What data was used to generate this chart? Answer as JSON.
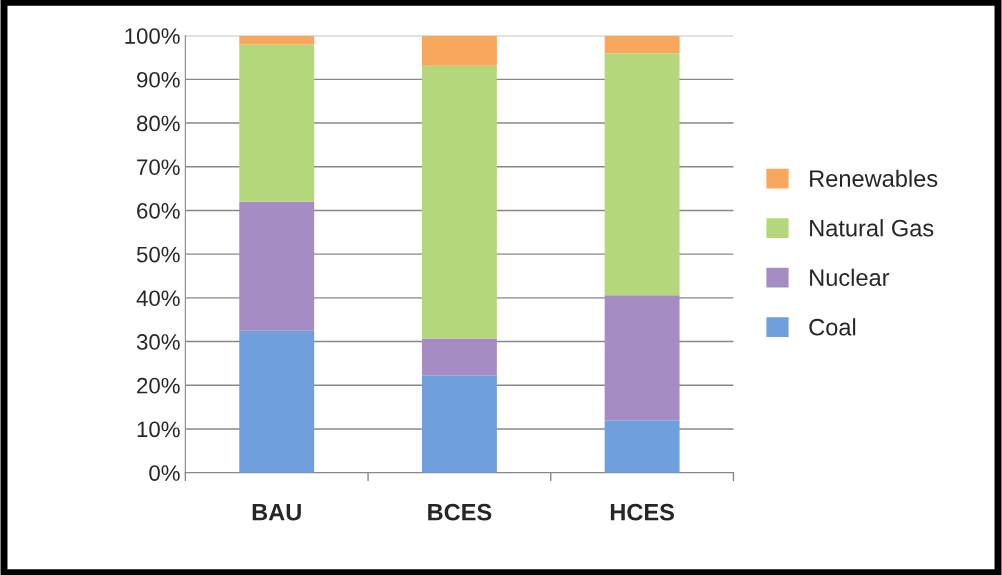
{
  "chart_data": {
    "type": "bar",
    "stacked": true,
    "categories": [
      "BAU",
      "BCES",
      "HCES"
    ],
    "series": [
      {
        "name": "Coal",
        "color": "#6fa0dc",
        "values": [
          32.5,
          22.3,
          12
        ]
      },
      {
        "name": "Nuclear",
        "color": "#a58cc4",
        "values": [
          29.5,
          8.4,
          28.6
        ]
      },
      {
        "name": "Natural Gas",
        "color": "#b5d77c",
        "values": [
          36,
          62.4,
          55.4
        ]
      },
      {
        "name": "Renewables",
        "color": "#f9a75c",
        "values": [
          2,
          6.9,
          4
        ]
      }
    ],
    "ylim": [
      0,
      100
    ],
    "yticks": [
      {
        "value": 0,
        "label": "0%"
      },
      {
        "value": 10,
        "label": "10%"
      },
      {
        "value": 20,
        "label": "20%"
      },
      {
        "value": 30,
        "label": "30%"
      },
      {
        "value": 40,
        "label": "40%"
      },
      {
        "value": 50,
        "label": "50%"
      },
      {
        "value": 60,
        "label": "60%"
      },
      {
        "value": 70,
        "label": "70%"
      },
      {
        "value": 80,
        "label": "80%"
      },
      {
        "value": 90,
        "label": "90%"
      },
      {
        "value": 100,
        "label": "100%"
      }
    ],
    "grid": "y",
    "legend": "right"
  }
}
